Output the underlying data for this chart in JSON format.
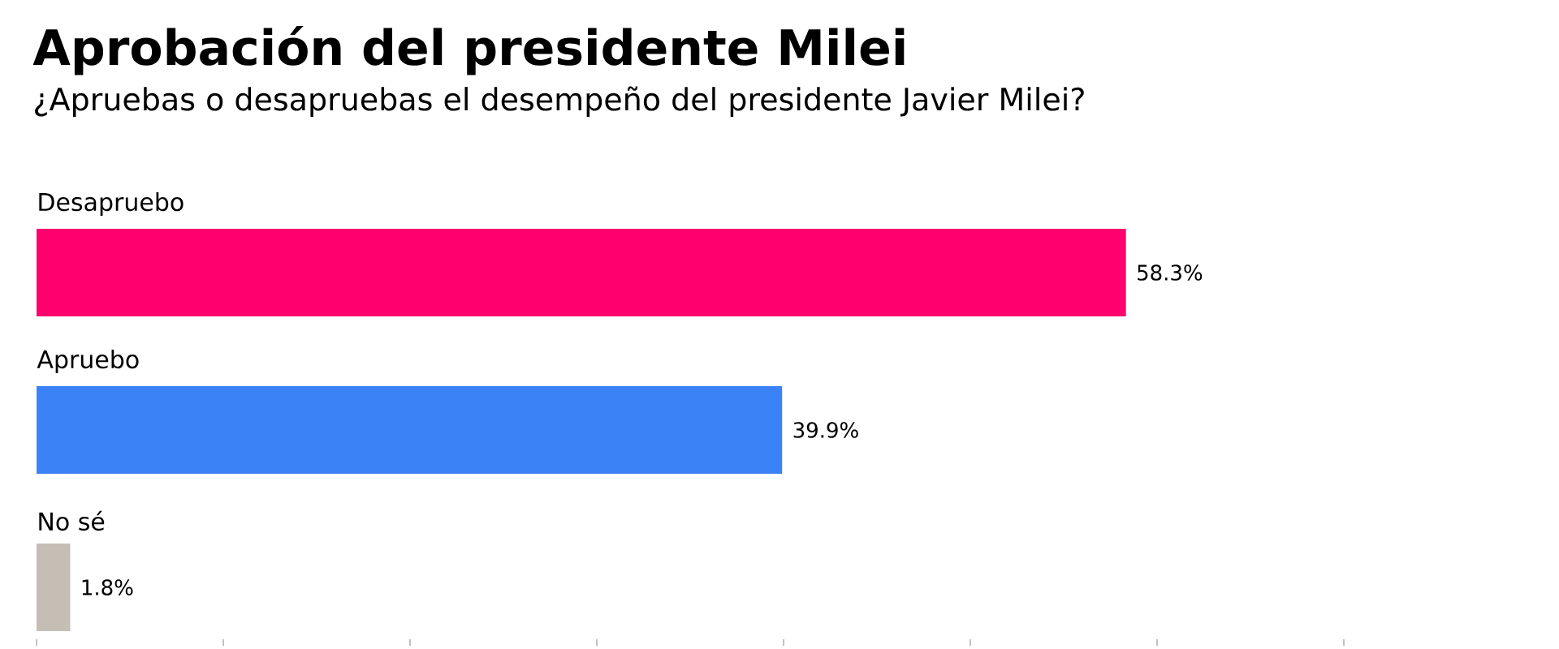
{
  "chart_data": {
    "type": "bar",
    "orientation": "horizontal",
    "title": "Aprobación del presidente Milei",
    "subtitle": "¿Apruebas o desapruebas el desempeño del presidente Javier Milei?",
    "categories": [
      "Desapruebo",
      "Apruebo",
      "No sé"
    ],
    "values": [
      58.3,
      39.9,
      1.8
    ],
    "colors": [
      "#ff006e",
      "#3b82f6",
      "#c4beb5"
    ],
    "value_labels": [
      "58.3%",
      "39.9%",
      "1.8%"
    ]
  }
}
